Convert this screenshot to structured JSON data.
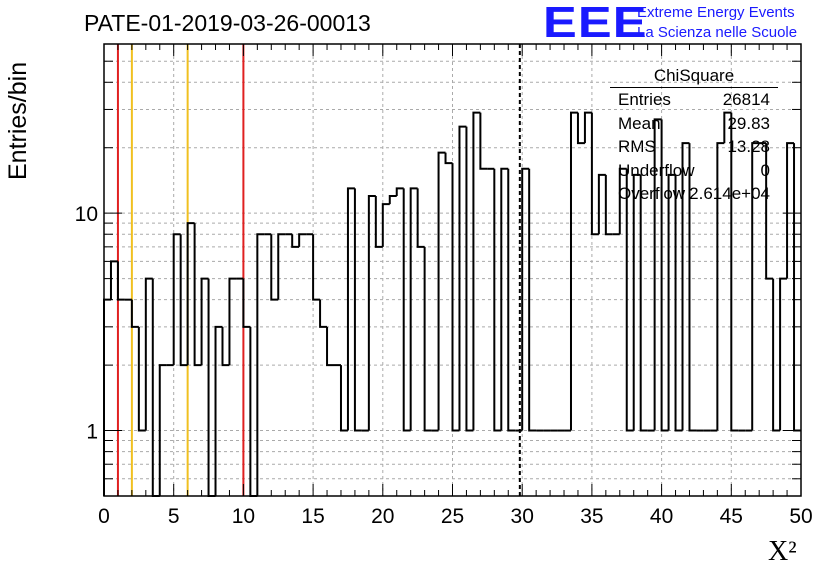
{
  "title": "PATE-01-2019-03-26-00013",
  "logo": {
    "mark": "EEE",
    "line1": "Extreme Energy Events",
    "line2": "La Scienza nelle Scuole",
    "color": "#1a1aff"
  },
  "stats": {
    "title": "ChiSquare",
    "rows": [
      {
        "label": "Entries",
        "value": "26814"
      },
      {
        "label": "Mean",
        "value": "29.83"
      },
      {
        "label": "RMS",
        "value": "13.28"
      },
      {
        "label": "Underflow",
        "value": "0"
      },
      {
        "label": "Overflow",
        "value": "2.614e+04"
      }
    ]
  },
  "chart_data": {
    "type": "histogram",
    "xlabel": "X²",
    "ylabel": "Entries/bin",
    "xlim": [
      0,
      50
    ],
    "ylim": [
      0.5,
      60
    ],
    "yscale": "log",
    "grid": true,
    "bin_width": 0.5,
    "xticks": [
      "0",
      "5",
      "10",
      "15",
      "20",
      "25",
      "30",
      "35",
      "40",
      "45",
      "50"
    ],
    "yticks": [
      {
        "value": 1,
        "label": "1"
      },
      {
        "value": 10,
        "label": "10"
      }
    ],
    "values": [
      4,
      6,
      4,
      4,
      3,
      1,
      5,
      0,
      2,
      2,
      8,
      2,
      9,
      2,
      5,
      0,
      3,
      2,
      5,
      5,
      3,
      0,
      8,
      8,
      4,
      8,
      8,
      7,
      8,
      8,
      4,
      3,
      2,
      2,
      1,
      13,
      1,
      1,
      12,
      7,
      11,
      12,
      13,
      1,
      13,
      7,
      1,
      1,
      19,
      17,
      1,
      25,
      1,
      29,
      16,
      16,
      1,
      16,
      1,
      1,
      16,
      1,
      1,
      1,
      1,
      1,
      1,
      29,
      21,
      29,
      8,
      15,
      8,
      8,
      16,
      1,
      15,
      1,
      1,
      27,
      1,
      15,
      1,
      21,
      1,
      1,
      1,
      1,
      21,
      29,
      1,
      1,
      1,
      21,
      21,
      5,
      1,
      5,
      21,
      1
    ],
    "vlines": [
      {
        "x": 1,
        "color": "#e02020",
        "style": "solid"
      },
      {
        "x": 2,
        "color": "#f0c020",
        "style": "solid"
      },
      {
        "x": 6,
        "color": "#f0c020",
        "style": "solid"
      },
      {
        "x": 10,
        "color": "#e02020",
        "style": "solid"
      },
      {
        "x": 29.83,
        "color": "#000000",
        "style": "dashed"
      }
    ],
    "legend_placement": "top-right"
  }
}
